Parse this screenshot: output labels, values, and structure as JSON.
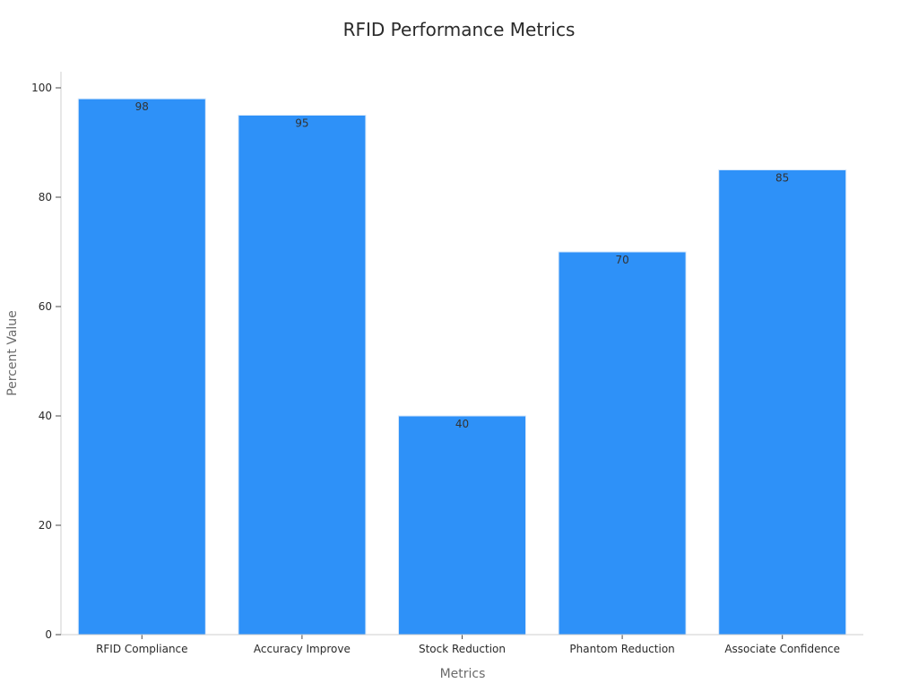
{
  "chart_data": {
    "type": "bar",
    "title": "RFID Performance Metrics",
    "xlabel": "Metrics",
    "ylabel": "Percent Value",
    "categories": [
      "RFID Compliance",
      "Accuracy Improve",
      "Stock Reduction",
      "Phantom Reduction",
      "Associate Confidence"
    ],
    "values": [
      98,
      95,
      40,
      70,
      85
    ],
    "ylim": [
      0,
      100
    ],
    "yticks": [
      0,
      20,
      40,
      60,
      80,
      100
    ],
    "grid": false,
    "legend": "none",
    "data_labels": true,
    "colors": {
      "bar": "#2e91f8",
      "bar_edge": "#d6e8fb"
    }
  }
}
